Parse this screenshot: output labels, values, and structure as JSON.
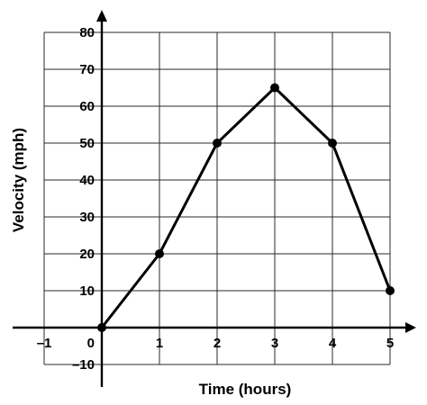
{
  "chart_data": {
    "type": "line",
    "xlabel": "Time (hours)",
    "ylabel": "Velocity (mph)",
    "xlim": [
      -1,
      5
    ],
    "ylim": [
      -10,
      80
    ],
    "x_tick_labels": [
      "–1",
      "0",
      "1",
      "2",
      "3",
      "4",
      "5"
    ],
    "y_tick_labels": [
      "–10",
      "10",
      "20",
      "30",
      "40",
      "50",
      "60",
      "70",
      "80"
    ],
    "grid": true,
    "series": [
      {
        "x": [
          0,
          1,
          2,
          3,
          4,
          5
        ],
        "y": [
          0,
          20,
          50,
          65,
          50,
          10
        ]
      }
    ]
  }
}
